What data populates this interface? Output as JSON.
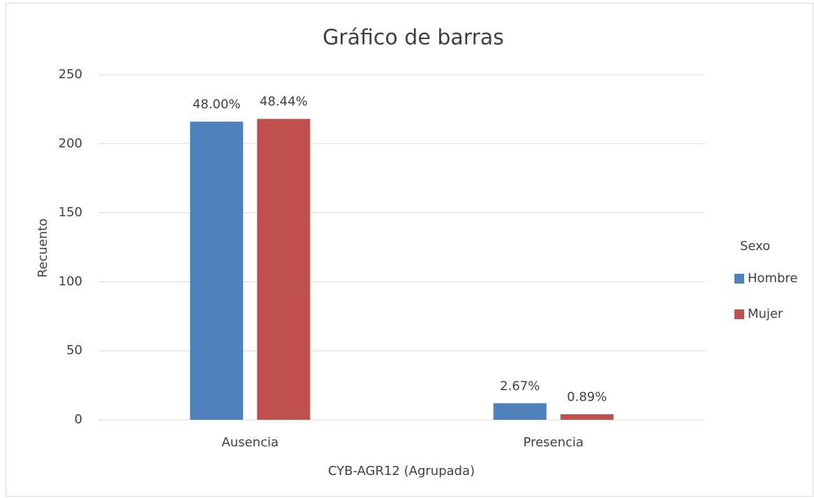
{
  "chart_data": {
    "type": "bar",
    "title": "Gráfico de barras",
    "x_label": "CYB-AGR12 (Agrupada)",
    "y_label": "Recuento",
    "legend_title": "Sexo",
    "legend": "right",
    "categories": [
      "Ausencia",
      "Presencia"
    ],
    "series": [
      {
        "name": "Hombre",
        "color": "#4f81bd",
        "values": [
          216,
          12
        ],
        "value_labels": [
          "48.00%",
          "2.67%"
        ]
      },
      {
        "name": "Mujer",
        "color": "#c0504d",
        "values": [
          218,
          4
        ],
        "value_labels": [
          "48.44%",
          "0.89%"
        ]
      }
    ],
    "ylim": [
      0,
      250
    ],
    "yticks": [
      0,
      50,
      100,
      150,
      200,
      250
    ],
    "grid": true
  }
}
